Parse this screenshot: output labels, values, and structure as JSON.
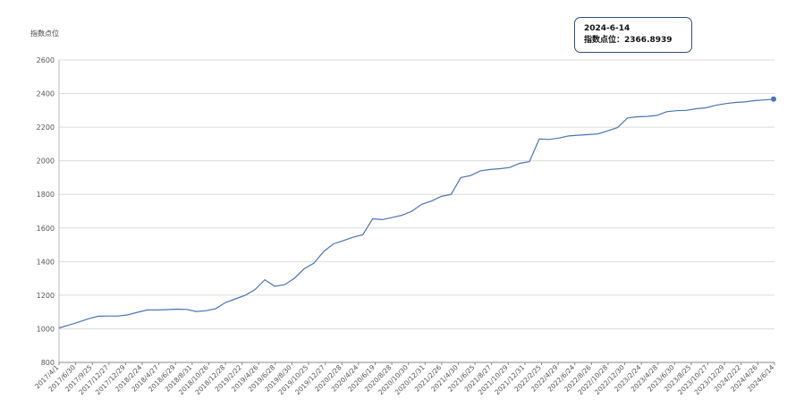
{
  "chart_data": {
    "type": "line",
    "ylabel": "指数点位",
    "ylim": [
      800,
      2600
    ],
    "yticks": [
      800,
      1000,
      1200,
      1400,
      1600,
      1800,
      2000,
      2200,
      2400,
      2600
    ],
    "grid": true,
    "line_color": "#4a74b8",
    "x_tick_labels": [
      "2017/4/1",
      "2017/6/30",
      "2017/9/25",
      "2017/12/27",
      "2017/12/29",
      "2018/2/24",
      "2018/4/27",
      "2018/6/29",
      "2018/8/31",
      "2018/10/26",
      "2018/12/28",
      "2019/2/22",
      "2019/4/26",
      "2019/6/28",
      "2019/8/30",
      "2019/10/25",
      "2019/12/27",
      "2020/2/28",
      "2020/4/24",
      "2020/6/19",
      "2020/8/28",
      "2020/10/30",
      "2020/12/31",
      "2021/2/26",
      "2021/4/30",
      "2021/6/25",
      "2021/8/27",
      "2021/10/29",
      "2021/12/31",
      "2022/2/25",
      "2022/4/29",
      "2022/6/24",
      "2022/8/26",
      "2022/10/28",
      "2022/12/30",
      "2023/2/24",
      "2023/4/28",
      "2023/6/30",
      "2023/8/25",
      "2023/10/27",
      "2023/12/29",
      "2024/2/22",
      "2024/4/26",
      "2024/6/14"
    ],
    "series": [
      {
        "values": [
          1005,
          1022,
          1040,
          1060,
          1075,
          1076,
          1076,
          1083,
          1098,
          1112,
          1112,
          1114,
          1117,
          1116,
          1103,
          1108,
          1120,
          1157,
          1178,
          1200,
          1233,
          1292,
          1253,
          1262,
          1300,
          1357,
          1390,
          1460,
          1505,
          1525,
          1545,
          1560,
          1655,
          1650,
          1662,
          1676,
          1700,
          1741,
          1760,
          1788,
          1800,
          1900,
          1912,
          1940,
          1948,
          1953,
          1960,
          1985,
          1995,
          2130,
          2127,
          2135,
          2148,
          2152,
          2156,
          2160,
          2178,
          2198,
          2255,
          2262,
          2264,
          2270,
          2292,
          2298,
          2300,
          2310,
          2315,
          2330,
          2340,
          2347,
          2350,
          2358,
          2362,
          2366.8939
        ]
      }
    ],
    "tooltip": {
      "date": "2024-6-14",
      "label": "指数点位：",
      "value": "2366.8939"
    }
  }
}
